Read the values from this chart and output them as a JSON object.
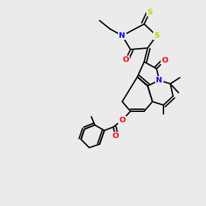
{
  "bg_color": "#ebebeb",
  "line_color": "#000000",
  "atom_colors": {
    "N": "#0000ff",
    "O": "#ff0000",
    "S": "#cccc00"
  },
  "fig_width": 3.0,
  "fig_height": 3.0,
  "dpi": 100,
  "lw": 1.4
}
